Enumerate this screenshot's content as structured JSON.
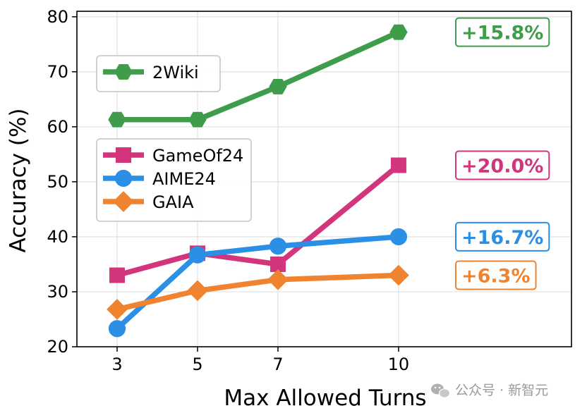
{
  "chart_data": {
    "type": "line",
    "xlabel": "Max Allowed Turns",
    "ylabel": "Accuracy (%)",
    "x": [
      3,
      5,
      7,
      10
    ],
    "xlim": [
      2,
      14.3
    ],
    "ylim": [
      20,
      81
    ],
    "xticks": [
      3,
      5,
      7,
      10
    ],
    "yticks": [
      20,
      30,
      40,
      50,
      60,
      70,
      80
    ],
    "grid": true,
    "series": [
      {
        "name": "2Wiki",
        "values": [
          61.3,
          61.3,
          67.3,
          77.2
        ],
        "color": "#3f9c4b",
        "marker": "hexagon",
        "improvement": "+15.8%"
      },
      {
        "name": "GameOf24",
        "values": [
          33.0,
          37.0,
          35.0,
          53.0
        ],
        "color": "#d2357b",
        "marker": "square",
        "improvement": "+20.0%"
      },
      {
        "name": "AIME24",
        "values": [
          23.3,
          36.7,
          38.3,
          40.0
        ],
        "color": "#2b8fe6",
        "marker": "circle",
        "improvement": "+16.7%"
      },
      {
        "name": "GAIA",
        "values": [
          26.8,
          30.2,
          32.2,
          33.0
        ],
        "color": "#f0832f",
        "marker": "diamond",
        "improvement": "+6.3%"
      }
    ],
    "legends": [
      {
        "position": "upper-left",
        "entries": [
          "2Wiki"
        ]
      },
      {
        "position": "center-left",
        "entries": [
          "GameOf24",
          "AIME24",
          "GAIA"
        ]
      }
    ]
  },
  "watermark": {
    "text": "公众号 · 新智元",
    "icon": "wechat-icon"
  }
}
